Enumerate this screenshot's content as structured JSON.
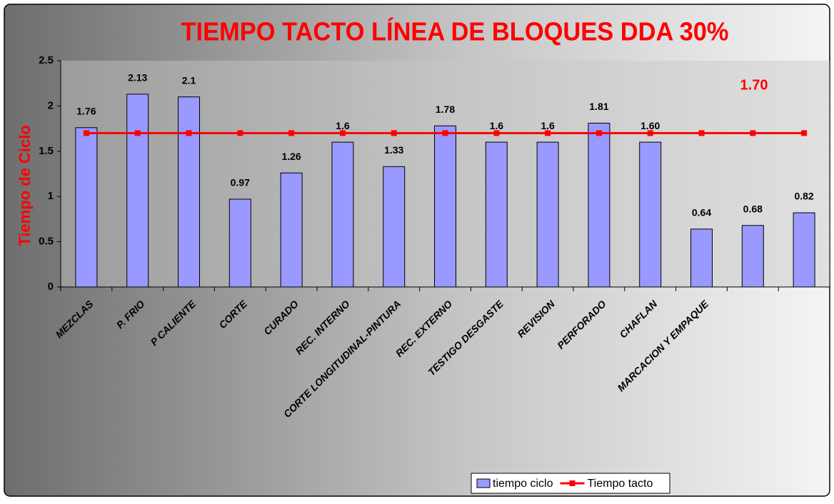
{
  "chart_data": {
    "type": "bar",
    "title": "TIEMPO TACTO LÍNEA DE BLOQUES DDA 30%",
    "y_label": "Tiempo de Ciclo",
    "annotations": [
      "1.70"
    ],
    "categories": [
      "MEZCLAS",
      "P. FRIO",
      "P CALIENTE",
      "CORTE",
      "CURADO",
      "REC. INTERNO",
      "CORTE LONGITUDINAL-PINTURA",
      "REC. EXTERNO",
      "TESTIGO DESGASTE",
      "REVISION",
      "PERFORADO",
      "CHAFLAN",
      "MARCACION Y EMPAQUE",
      null,
      null
    ],
    "series": [
      {
        "name": "tiempo ciclo",
        "type": "bar",
        "color": "#9999ff",
        "values": [
          1.76,
          2.13,
          2.1,
          0.97,
          1.26,
          1.6,
          1.33,
          1.78,
          1.6,
          1.6,
          1.81,
          1.6,
          0.64,
          0.68,
          0.82
        ],
        "value_labels": [
          "1.76",
          "2.13",
          "2.1",
          "0.97",
          "1.26",
          "1.6",
          "1.33",
          "1.78",
          "1.6",
          "1.6",
          "1.81",
          "1.60",
          "0.64",
          "0.68",
          "0.82"
        ]
      },
      {
        "name": "Tiempo tacto",
        "type": "line",
        "color": "#ff0000",
        "values": [
          1.7,
          1.7,
          1.7,
          1.7,
          1.7,
          1.7,
          1.7,
          1.7,
          1.7,
          1.7,
          1.7,
          1.7,
          1.7,
          1.7,
          1.7
        ]
      }
    ],
    "ylim": [
      0,
      2.5
    ],
    "yticks": [
      0,
      0.5,
      1,
      1.5,
      2,
      2.5
    ],
    "legend": "bottom"
  }
}
